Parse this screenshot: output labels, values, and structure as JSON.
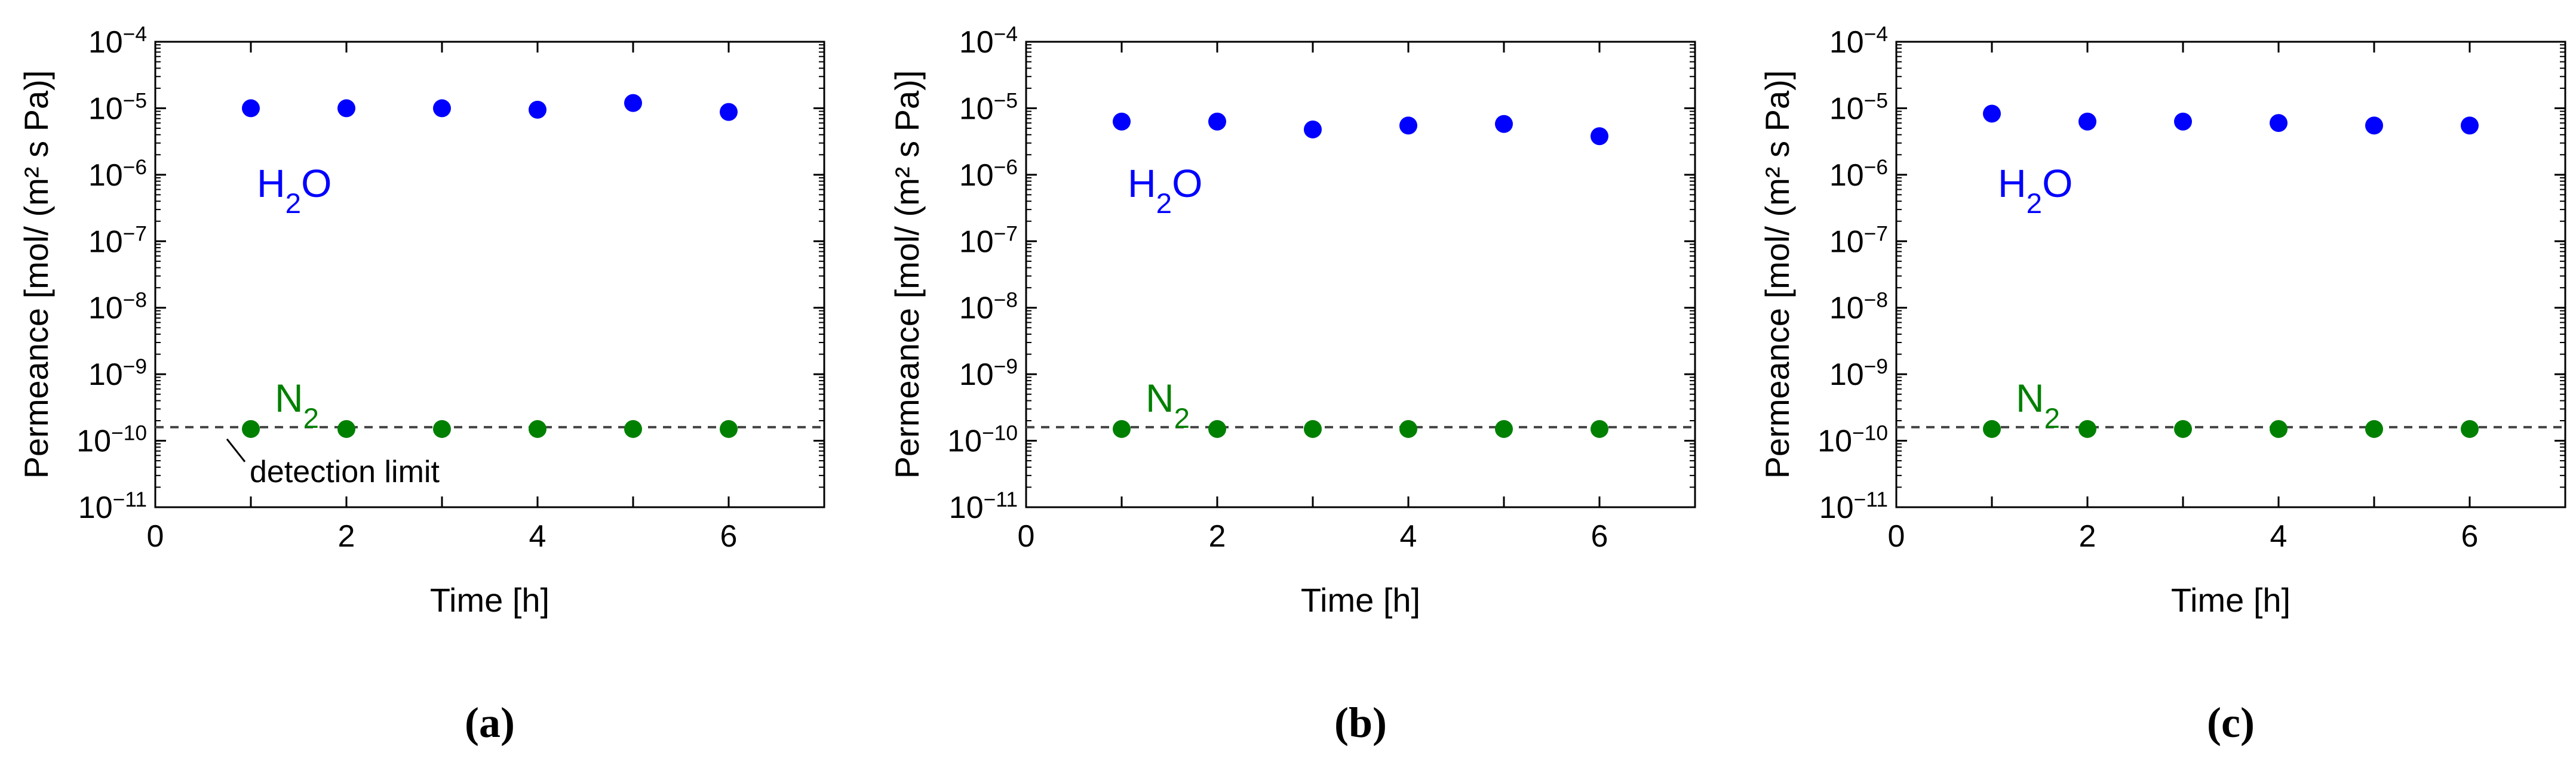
{
  "chart_data": [
    {
      "type": "scatter",
      "panel_label": "(a)",
      "xlabel": "Time [h]",
      "ylabel": "Permeance [mol/ (m² s Pa)]",
      "xlim": [
        0,
        7
      ],
      "xticks": [
        0,
        2,
        4,
        6
      ],
      "ylim": [
        1e-11,
        0.0001
      ],
      "yscale": "log",
      "ytick_exponents": [
        -4,
        -5,
        -6,
        -7,
        -8,
        -9,
        -10,
        -11
      ],
      "detection_limit": 1.6e-10,
      "annotation": "detection limit",
      "series": [
        {
          "name": "H2O",
          "color": "#0000ff",
          "x": [
            1,
            2,
            3,
            4,
            5,
            6
          ],
          "y": [
            1e-05,
            1e-05,
            1e-05,
            9.5e-06,
            1.2e-05,
            8.8e-06
          ]
        },
        {
          "name": "N2",
          "color": "#008000",
          "x": [
            1,
            2,
            3,
            4,
            5,
            6
          ],
          "y": [
            1.5e-10,
            1.5e-10,
            1.5e-10,
            1.5e-10,
            1.5e-10,
            1.5e-10
          ]
        }
      ]
    },
    {
      "type": "scatter",
      "panel_label": "(b)",
      "xlabel": "Time [h]",
      "ylabel": "Permeance [mol/ (m² s Pa)]",
      "xlim": [
        0,
        7
      ],
      "xticks": [
        0,
        2,
        4,
        6
      ],
      "ylim": [
        1e-11,
        0.0001
      ],
      "yscale": "log",
      "ytick_exponents": [
        -4,
        -5,
        -6,
        -7,
        -8,
        -9,
        -10,
        -11
      ],
      "detection_limit": 1.6e-10,
      "series": [
        {
          "name": "H2O",
          "color": "#0000ff",
          "x": [
            1,
            2,
            3,
            4,
            5,
            6
          ],
          "y": [
            6.3e-06,
            6.3e-06,
            4.8e-06,
            5.5e-06,
            5.8e-06,
            3.8e-06
          ]
        },
        {
          "name": "N2",
          "color": "#008000",
          "x": [
            1,
            2,
            3,
            4,
            5,
            6
          ],
          "y": [
            1.5e-10,
            1.5e-10,
            1.5e-10,
            1.5e-10,
            1.5e-10,
            1.5e-10
          ]
        }
      ]
    },
    {
      "type": "scatter",
      "panel_label": "(c)",
      "xlabel": "Time [h]",
      "ylabel": "Permeance [mol/ (m² s Pa)]",
      "xlim": [
        0,
        7
      ],
      "xticks": [
        0,
        2,
        4,
        6
      ],
      "ylim": [
        1e-11,
        0.0001
      ],
      "yscale": "log",
      "ytick_exponents": [
        -4,
        -5,
        -6,
        -7,
        -8,
        -9,
        -10,
        -11
      ],
      "detection_limit": 1.6e-10,
      "series": [
        {
          "name": "H2O",
          "color": "#0000ff",
          "x": [
            1,
            2,
            3,
            4,
            5,
            6
          ],
          "y": [
            8.3e-06,
            6.3e-06,
            6.3e-06,
            6e-06,
            5.5e-06,
            5.5e-06
          ]
        },
        {
          "name": "N2",
          "color": "#008000",
          "x": [
            1,
            2,
            3,
            4,
            5,
            6
          ],
          "y": [
            1.5e-10,
            1.5e-10,
            1.5e-10,
            1.5e-10,
            1.5e-10,
            1.5e-10
          ]
        }
      ]
    }
  ]
}
